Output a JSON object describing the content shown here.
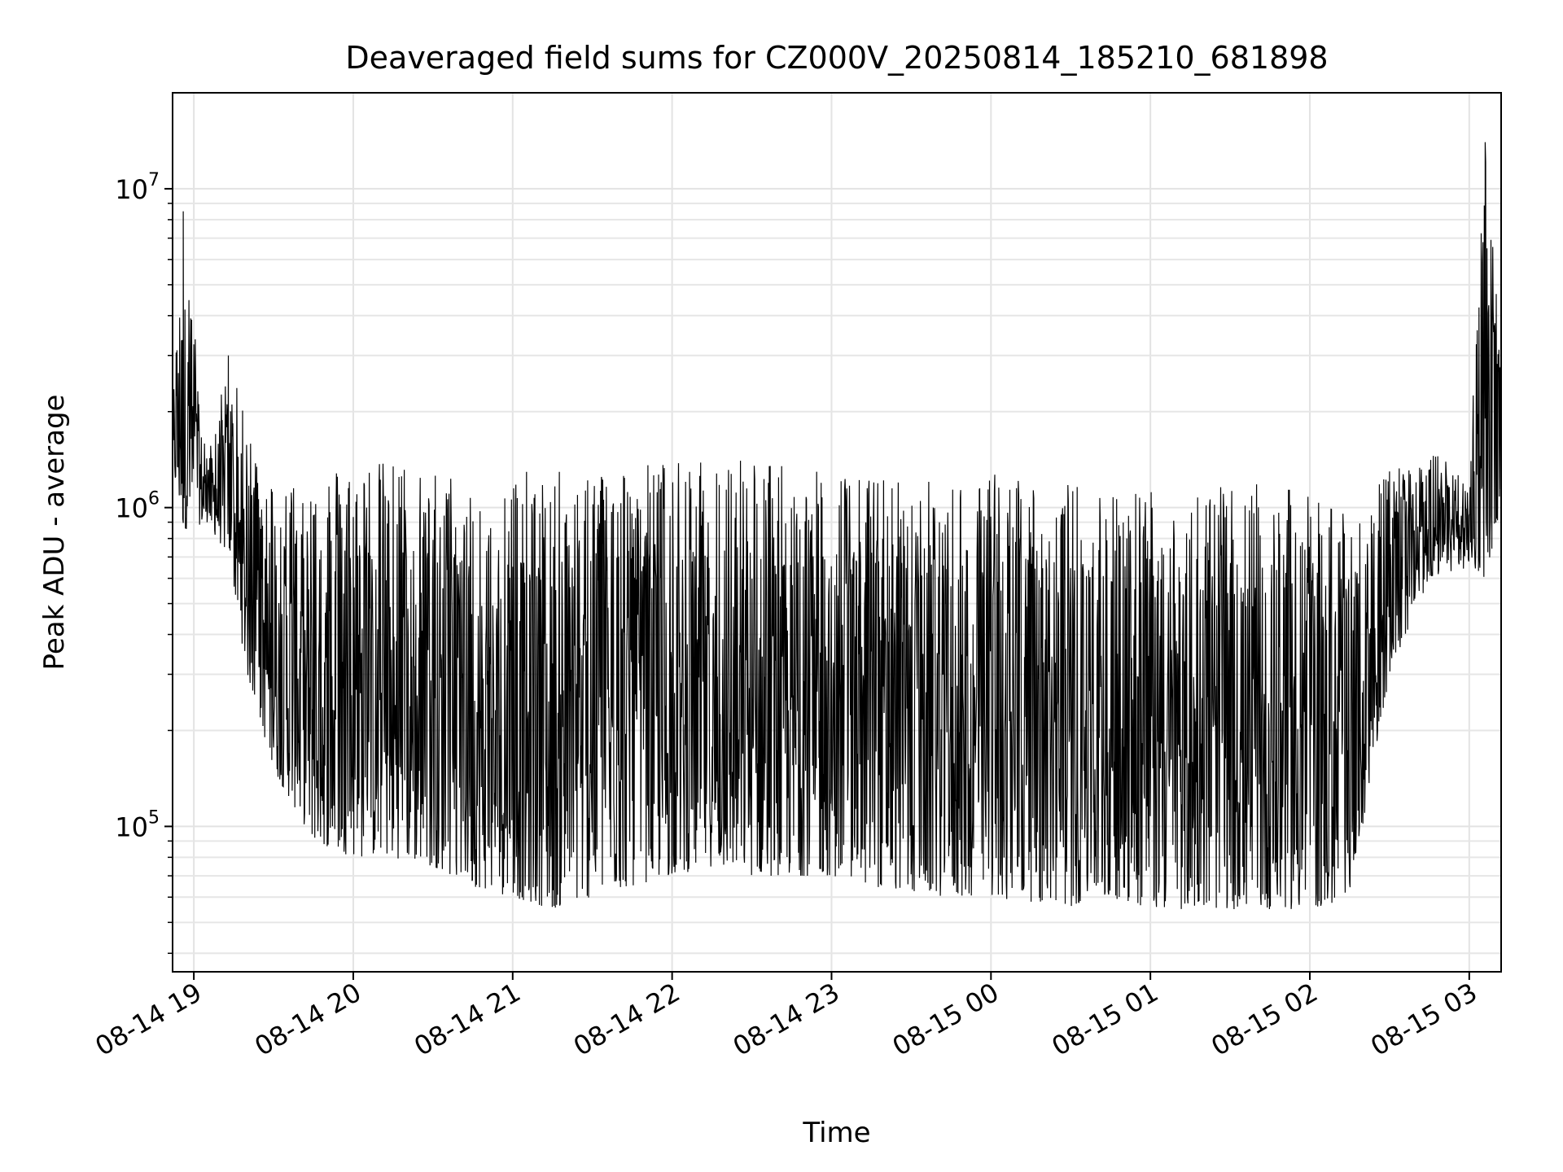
{
  "chart_data": {
    "type": "line",
    "title": "Deaveraged field sums for CZ000V_20250814_185210_681898",
    "xlabel": "Time",
    "ylabel": "Peak ADU - average",
    "x_scale": "time",
    "y_scale": "log",
    "xlim": [
      "08-14 18:52",
      "08-15 03:12"
    ],
    "ylim": [
      35000,
      20000000
    ],
    "x_ticks": [
      "08-14 19",
      "08-14 20",
      "08-14 21",
      "08-14 22",
      "08-14 23",
      "08-15 00",
      "08-15 01",
      "08-15 02",
      "08-15 03"
    ],
    "y_ticks": [
      {
        "base": "10",
        "exp": "5",
        "value": 100000
      },
      {
        "base": "10",
        "exp": "6",
        "value": 1000000
      },
      {
        "base": "10",
        "exp": "7",
        "value": 10000000
      }
    ],
    "grid": true,
    "line_color": "#000000",
    "envelope": [
      {
        "t": "08-14 18:52",
        "low": 1300000,
        "high": 2000000
      },
      {
        "t": "08-14 18:56",
        "low": 850000,
        "high": 8500000
      },
      {
        "t": "08-14 19:05",
        "low": 900000,
        "high": 1400000
      },
      {
        "t": "08-14 19:13",
        "low": 700000,
        "high": 3000000
      },
      {
        "t": "08-14 19:20",
        "low": 300000,
        "high": 1800000
      },
      {
        "t": "08-14 19:30",
        "low": 150000,
        "high": 1200000
      },
      {
        "t": "08-14 19:45",
        "low": 90000,
        "high": 1300000
      },
      {
        "t": "08-14 20:00",
        "low": 80000,
        "high": 1400000
      },
      {
        "t": "08-14 20:15",
        "low": 80000,
        "high": 1400000
      },
      {
        "t": "08-14 20:30",
        "low": 75000,
        "high": 1350000
      },
      {
        "t": "08-14 20:45",
        "low": 65000,
        "high": 1200000
      },
      {
        "t": "08-14 21:00",
        "low": 60000,
        "high": 1300000
      },
      {
        "t": "08-14 21:15",
        "low": 55000,
        "high": 1300000
      },
      {
        "t": "08-14 21:30",
        "low": 60000,
        "high": 1350000
      },
      {
        "t": "08-14 21:45",
        "low": 65000,
        "high": 1400000
      },
      {
        "t": "08-14 22:00",
        "low": 70000,
        "high": 1400000
      },
      {
        "t": "08-14 22:15",
        "low": 75000,
        "high": 1400000
      },
      {
        "t": "08-14 22:30",
        "low": 70000,
        "high": 1550000
      },
      {
        "t": "08-14 22:45",
        "low": 70000,
        "high": 1300000
      },
      {
        "t": "08-14 23:00",
        "low": 70000,
        "high": 1300000
      },
      {
        "t": "08-14 23:15",
        "low": 65000,
        "high": 1250000
      },
      {
        "t": "08-14 23:30",
        "low": 62000,
        "high": 1250000
      },
      {
        "t": "08-14 23:45",
        "low": 60000,
        "high": 1200000
      },
      {
        "t": "08-15 00:00",
        "low": 60000,
        "high": 1300000
      },
      {
        "t": "08-15 00:15",
        "low": 58000,
        "high": 1250000
      },
      {
        "t": "08-15 00:30",
        "low": 56000,
        "high": 1200000
      },
      {
        "t": "08-15 00:45",
        "low": 60000,
        "high": 1150000
      },
      {
        "t": "08-15 01:00",
        "low": 55000,
        "high": 1200000
      },
      {
        "t": "08-15 01:15",
        "low": 55000,
        "high": 1200000
      },
      {
        "t": "08-15 01:30",
        "low": 55000,
        "high": 1150000
      },
      {
        "t": "08-15 01:45",
        "low": 55000,
        "high": 1200000
      },
      {
        "t": "08-15 02:00",
        "low": 55000,
        "high": 1100000
      },
      {
        "t": "08-15 02:15",
        "low": 58000,
        "high": 1000000
      },
      {
        "t": "08-15 02:30",
        "low": 300000,
        "high": 1300000
      },
      {
        "t": "08-15 02:45",
        "low": 600000,
        "high": 1500000
      },
      {
        "t": "08-15 03:00",
        "low": 650000,
        "high": 1300000
      },
      {
        "t": "08-15 03:06",
        "low": 600000,
        "high": 14000000
      },
      {
        "t": "08-15 03:12",
        "low": 1000000,
        "high": 3000000
      }
    ]
  }
}
